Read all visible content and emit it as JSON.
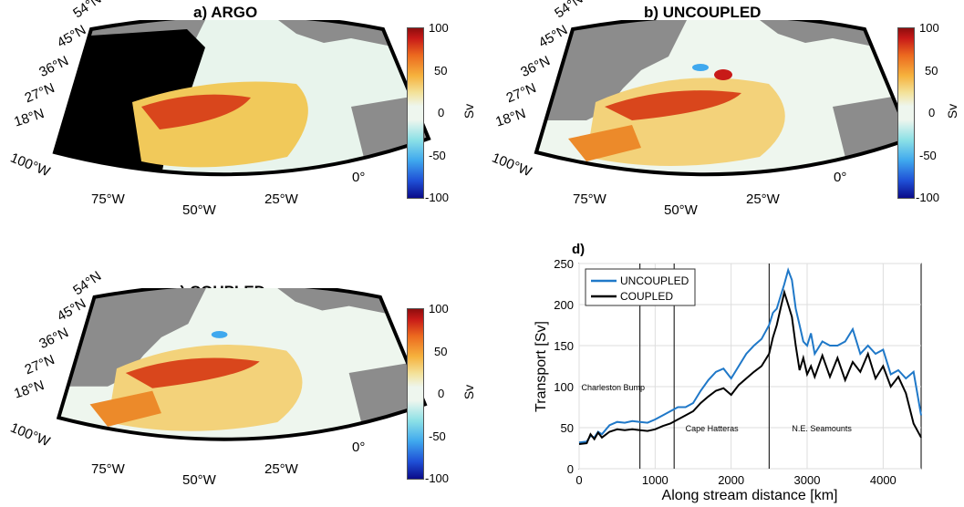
{
  "panels": {
    "a": {
      "title": "a) ARGO"
    },
    "b": {
      "title": "b) UNCOUPLED"
    },
    "c": {
      "title": "c) COUPLED"
    }
  },
  "map_labels": {
    "lat": [
      "54°N",
      "45°N",
      "36°N",
      "27°N",
      "18°N",
      "100°W"
    ],
    "lon": [
      "75°W",
      "50°W",
      "25°W",
      "0°"
    ]
  },
  "colorbar": {
    "ticks": [
      "100",
      "50",
      "0",
      "-50",
      "-100"
    ],
    "unit": "Sv",
    "colors": [
      "#0b0b8a",
      "#3fa8ee",
      "#eef6ee",
      "#f6b23d",
      "#c81a18"
    ]
  },
  "colors": {
    "land": "#8c8c8c",
    "argo_mask": "#000000",
    "ocean_bg": "#e8f4ec"
  },
  "chart_data": {
    "type": "line",
    "title": "d)",
    "xlabel": "Along stream distance [km]",
    "ylabel": "Transport [Sv]",
    "xlim": [
      0,
      4500
    ],
    "ylim": [
      0,
      250
    ],
    "xticks": [
      0,
      1000,
      2000,
      3000,
      4000
    ],
    "yticks": [
      0,
      50,
      100,
      150,
      200,
      250
    ],
    "grid": true,
    "legend_position": "top-left",
    "series": [
      {
        "name": "UNCOUPLED",
        "color": "#1f78c8",
        "x": [
          0,
          100,
          150,
          200,
          250,
          300,
          400,
          500,
          600,
          700,
          800,
          900,
          1000,
          1100,
          1200,
          1300,
          1400,
          1500,
          1600,
          1700,
          1800,
          1900,
          2000,
          2100,
          2200,
          2300,
          2400,
          2500,
          2550,
          2600,
          2650,
          2700,
          2750,
          2800,
          2850,
          2900,
          2950,
          3000,
          3050,
          3100,
          3200,
          3300,
          3400,
          3500,
          3600,
          3700,
          3800,
          3900,
          4000,
          4100,
          4200,
          4300,
          4400,
          4500
        ],
        "y": [
          32,
          33,
          40,
          38,
          45,
          42,
          53,
          57,
          56,
          58,
          57,
          56,
          60,
          65,
          70,
          75,
          75,
          80,
          95,
          108,
          118,
          122,
          110,
          125,
          140,
          150,
          158,
          175,
          190,
          195,
          210,
          225,
          242,
          230,
          195,
          175,
          155,
          150,
          165,
          140,
          155,
          150,
          150,
          155,
          170,
          140,
          150,
          140,
          145,
          115,
          120,
          110,
          118,
          65
        ]
      },
      {
        "name": "COUPLED",
        "color": "#000000",
        "x": [
          0,
          100,
          150,
          200,
          250,
          300,
          400,
          500,
          600,
          700,
          800,
          900,
          1000,
          1100,
          1200,
          1300,
          1400,
          1500,
          1600,
          1700,
          1800,
          1900,
          2000,
          2100,
          2200,
          2300,
          2400,
          2500,
          2550,
          2600,
          2650,
          2700,
          2750,
          2800,
          2850,
          2900,
          2950,
          3000,
          3050,
          3100,
          3200,
          3300,
          3400,
          3500,
          3600,
          3700,
          3800,
          3900,
          4000,
          4100,
          4200,
          4300,
          4400,
          4500
        ],
        "y": [
          30,
          31,
          42,
          36,
          44,
          38,
          45,
          48,
          47,
          48,
          47,
          46,
          48,
          52,
          55,
          60,
          65,
          70,
          80,
          88,
          95,
          98,
          90,
          102,
          110,
          118,
          125,
          140,
          160,
          175,
          195,
          215,
          200,
          185,
          150,
          120,
          135,
          115,
          125,
          112,
          138,
          112,
          135,
          108,
          130,
          118,
          140,
          110,
          125,
          100,
          112,
          92,
          55,
          38
        ]
      }
    ],
    "annotations": [
      {
        "text": "Charleston Bump",
        "x": 30,
        "y": 100
      },
      {
        "text": "Cape Hatteras",
        "x": 1400,
        "y": 50
      },
      {
        "text": "N.E. Seamounts",
        "x": 2800,
        "y": 50
      }
    ],
    "vlines": [
      800,
      1250,
      2500
    ]
  }
}
